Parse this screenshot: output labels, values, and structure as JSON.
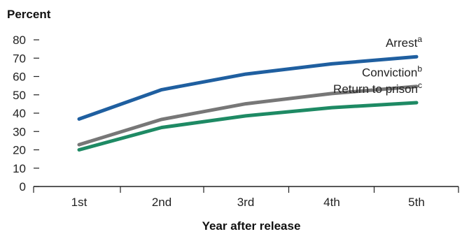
{
  "chart_data": {
    "type": "line",
    "title": "",
    "ylabel": "Percent",
    "xlabel": "Year after release",
    "categories": [
      "1st",
      "2nd",
      "3rd",
      "4th",
      "5th"
    ],
    "ylim": [
      0,
      80
    ],
    "yticks": [
      "0",
      "10",
      "20",
      "30",
      "40",
      "50",
      "60",
      "70",
      "80"
    ],
    "grid": false,
    "legend": "inline labels at right end of each line",
    "series": [
      {
        "name": "Arrest",
        "superscript": "a",
        "color": "#1f5fa0",
        "values": [
          36.8,
          52.8,
          61.3,
          66.9,
          70.8
        ]
      },
      {
        "name": "Conviction",
        "superscript": "b",
        "color": "#777777",
        "values": [
          22.8,
          36.6,
          45.1,
          50.7,
          54.6
        ]
      },
      {
        "name": "Return to prison",
        "superscript": "c",
        "color": "#1e8a64",
        "values": [
          20.0,
          32.2,
          38.5,
          43.0,
          45.7
        ]
      }
    ]
  }
}
